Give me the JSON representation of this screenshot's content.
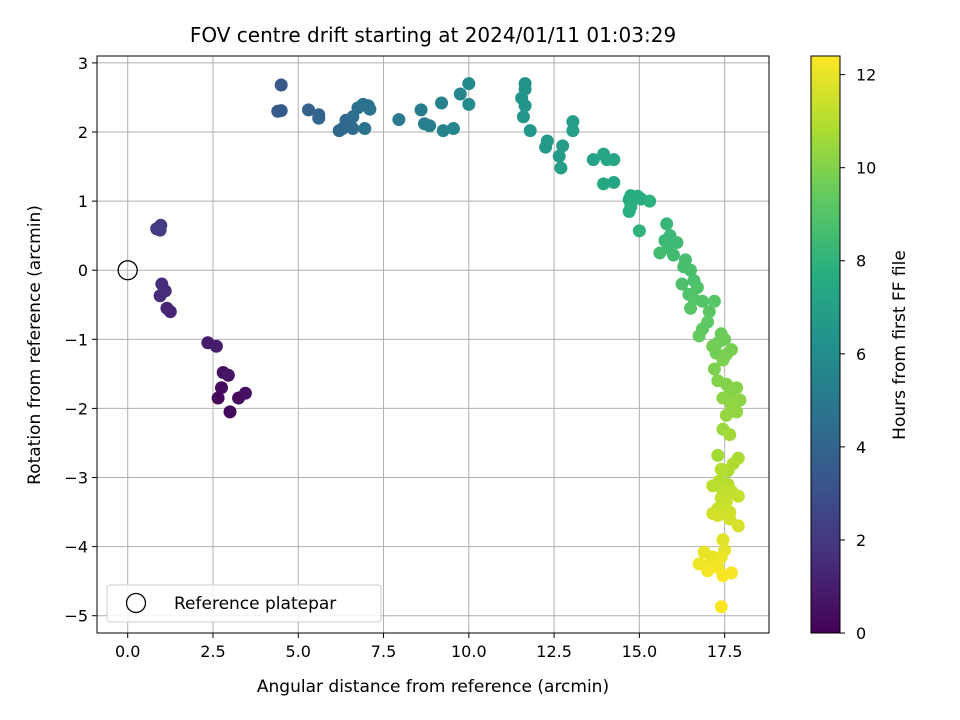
{
  "chart_data": {
    "type": "scatter",
    "title": "FOV centre drift starting at 2024/01/11 01:03:29",
    "xlabel": "Angular distance from reference (arcmin)",
    "ylabel": "Rotation from reference (arcmin)",
    "xlim": [
      -0.9,
      18.8
    ],
    "ylim": [
      -5.25,
      3.1
    ],
    "xticks": [
      0.0,
      2.5,
      5.0,
      7.5,
      10.0,
      12.5,
      15.0,
      17.5
    ],
    "xtick_labels": [
      "0.0",
      "2.5",
      "5.0",
      "7.5",
      "10.0",
      "12.5",
      "15.0",
      "17.5"
    ],
    "yticks": [
      3,
      2,
      1,
      0,
      -1,
      -2,
      -3,
      -4,
      -5
    ],
    "ytick_labels": [
      "3",
      "2",
      "1",
      "0",
      "−1",
      "−2",
      "−3",
      "−4",
      "−5"
    ],
    "grid": true,
    "colormap": "viridis",
    "colorbar": {
      "label": "Hours from first FF file",
      "range": [
        0,
        12.4
      ],
      "ticks": [
        0,
        2,
        4,
        6,
        8,
        10,
        12
      ],
      "tick_labels": [
        "0",
        "2",
        "4",
        "6",
        "8",
        "10",
        "12"
      ]
    },
    "legend": {
      "position": "lower-left",
      "entries": [
        {
          "label": "Reference platepar",
          "marker": "hollow-circle"
        }
      ]
    },
    "reference_point": {
      "x": 0.0,
      "y": 0.0
    },
    "series": [
      {
        "points": [
          {
            "x": 3.0,
            "y": -2.05,
            "t": 0.2
          },
          {
            "x": 2.65,
            "y": -1.85,
            "t": 0.3
          },
          {
            "x": 2.75,
            "y": -1.7,
            "t": 0.4
          },
          {
            "x": 3.25,
            "y": -1.85,
            "t": 0.4
          },
          {
            "x": 3.45,
            "y": -1.78,
            "t": 0.5
          },
          {
            "x": 2.8,
            "y": -1.48,
            "t": 0.6
          },
          {
            "x": 2.95,
            "y": -1.52,
            "t": 0.7
          },
          {
            "x": 2.35,
            "y": -1.05,
            "t": 0.9
          },
          {
            "x": 2.6,
            "y": -1.1,
            "t": 1.0
          },
          {
            "x": 1.25,
            "y": -0.6,
            "t": 1.3
          },
          {
            "x": 1.15,
            "y": -0.55,
            "t": 1.3
          },
          {
            "x": 0.95,
            "y": -0.37,
            "t": 1.5
          },
          {
            "x": 1.1,
            "y": -0.3,
            "t": 1.5
          },
          {
            "x": 1.0,
            "y": -0.2,
            "t": 1.6
          },
          {
            "x": 0.85,
            "y": 0.6,
            "t": 2.1
          },
          {
            "x": 0.95,
            "y": 0.58,
            "t": 2.2
          },
          {
            "x": 0.97,
            "y": 0.65,
            "t": 2.2
          },
          {
            "x": 4.5,
            "y": 2.68,
            "t": 3.4
          },
          {
            "x": 4.4,
            "y": 2.3,
            "t": 3.4
          },
          {
            "x": 4.5,
            "y": 2.31,
            "t": 3.5
          },
          {
            "x": 5.3,
            "y": 2.32,
            "t": 3.8
          },
          {
            "x": 5.6,
            "y": 2.25,
            "t": 3.9
          },
          {
            "x": 5.6,
            "y": 2.2,
            "t": 4.0
          },
          {
            "x": 6.2,
            "y": 2.02,
            "t": 4.1
          },
          {
            "x": 6.3,
            "y": 2.05,
            "t": 4.2
          },
          {
            "x": 6.4,
            "y": 2.17,
            "t": 4.2
          },
          {
            "x": 6.6,
            "y": 2.05,
            "t": 4.3
          },
          {
            "x": 6.6,
            "y": 2.22,
            "t": 4.4
          },
          {
            "x": 6.75,
            "y": 2.35,
            "t": 4.5
          },
          {
            "x": 6.9,
            "y": 2.4,
            "t": 4.6
          },
          {
            "x": 7.05,
            "y": 2.38,
            "t": 4.6
          },
          {
            "x": 7.1,
            "y": 2.33,
            "t": 4.7
          },
          {
            "x": 6.95,
            "y": 2.05,
            "t": 4.7
          },
          {
            "x": 7.95,
            "y": 2.18,
            "t": 5.0
          },
          {
            "x": 8.6,
            "y": 2.32,
            "t": 5.2
          },
          {
            "x": 8.7,
            "y": 2.12,
            "t": 5.3
          },
          {
            "x": 8.85,
            "y": 2.09,
            "t": 5.3
          },
          {
            "x": 9.2,
            "y": 2.42,
            "t": 5.4
          },
          {
            "x": 9.25,
            "y": 2.02,
            "t": 5.5
          },
          {
            "x": 9.55,
            "y": 2.05,
            "t": 5.6
          },
          {
            "x": 9.75,
            "y": 2.55,
            "t": 5.7
          },
          {
            "x": 10.0,
            "y": 2.7,
            "t": 5.8
          },
          {
            "x": 10.0,
            "y": 2.4,
            "t": 5.9
          },
          {
            "x": 11.55,
            "y": 2.49,
            "t": 6.3
          },
          {
            "x": 11.65,
            "y": 2.7,
            "t": 6.3
          },
          {
            "x": 11.65,
            "y": 2.62,
            "t": 6.4
          },
          {
            "x": 11.65,
            "y": 2.38,
            "t": 6.4
          },
          {
            "x": 11.6,
            "y": 2.22,
            "t": 6.5
          },
          {
            "x": 11.8,
            "y": 2.02,
            "t": 6.5
          },
          {
            "x": 12.3,
            "y": 1.87,
            "t": 6.7
          },
          {
            "x": 12.25,
            "y": 1.78,
            "t": 6.7
          },
          {
            "x": 12.65,
            "y": 1.65,
            "t": 6.8
          },
          {
            "x": 12.75,
            "y": 1.8,
            "t": 6.8
          },
          {
            "x": 12.7,
            "y": 1.48,
            "t": 6.9
          },
          {
            "x": 13.05,
            "y": 2.15,
            "t": 6.9
          },
          {
            "x": 13.05,
            "y": 2.02,
            "t": 7.0
          },
          {
            "x": 13.65,
            "y": 1.6,
            "t": 7.1
          },
          {
            "x": 13.95,
            "y": 1.68,
            "t": 7.2
          },
          {
            "x": 14.05,
            "y": 1.6,
            "t": 7.3
          },
          {
            "x": 14.25,
            "y": 1.6,
            "t": 7.3
          },
          {
            "x": 13.95,
            "y": 1.25,
            "t": 7.4
          },
          {
            "x": 14.25,
            "y": 1.27,
            "t": 7.4
          },
          {
            "x": 14.7,
            "y": 1.02,
            "t": 7.6
          },
          {
            "x": 14.75,
            "y": 1.08,
            "t": 7.6
          },
          {
            "x": 14.95,
            "y": 1.07,
            "t": 7.7
          },
          {
            "x": 15.05,
            "y": 1.03,
            "t": 7.7
          },
          {
            "x": 14.75,
            "y": 0.92,
            "t": 7.8
          },
          {
            "x": 14.7,
            "y": 0.85,
            "t": 7.8
          },
          {
            "x": 15.3,
            "y": 1.0,
            "t": 7.9
          },
          {
            "x": 15.0,
            "y": 0.57,
            "t": 8.0
          },
          {
            "x": 15.8,
            "y": 0.67,
            "t": 8.2
          },
          {
            "x": 15.9,
            "y": 0.5,
            "t": 8.3
          },
          {
            "x": 15.75,
            "y": 0.43,
            "t": 8.3
          },
          {
            "x": 16.1,
            "y": 0.4,
            "t": 8.4
          },
          {
            "x": 15.85,
            "y": 0.32,
            "t": 8.4
          },
          {
            "x": 15.6,
            "y": 0.25,
            "t": 8.5
          },
          {
            "x": 16.0,
            "y": 0.22,
            "t": 8.5
          },
          {
            "x": 16.35,
            "y": 0.15,
            "t": 8.6
          },
          {
            "x": 16.3,
            "y": 0.05,
            "t": 8.7
          },
          {
            "x": 16.5,
            "y": 0.0,
            "t": 8.7
          },
          {
            "x": 16.25,
            "y": -0.2,
            "t": 8.8
          },
          {
            "x": 16.6,
            "y": -0.15,
            "t": 8.8
          },
          {
            "x": 16.7,
            "y": -0.25,
            "t": 8.9
          },
          {
            "x": 16.45,
            "y": -0.35,
            "t": 8.9
          },
          {
            "x": 16.6,
            "y": -0.42,
            "t": 9.0
          },
          {
            "x": 16.85,
            "y": -0.45,
            "t": 9.0
          },
          {
            "x": 16.5,
            "y": -0.55,
            "t": 9.1
          },
          {
            "x": 17.2,
            "y": -0.45,
            "t": 9.1
          },
          {
            "x": 17.05,
            "y": -0.6,
            "t": 9.2
          },
          {
            "x": 17.0,
            "y": -0.75,
            "t": 9.3
          },
          {
            "x": 16.85,
            "y": -0.85,
            "t": 9.3
          },
          {
            "x": 16.75,
            "y": -0.95,
            "t": 9.4
          },
          {
            "x": 17.4,
            "y": -0.92,
            "t": 9.5
          },
          {
            "x": 17.5,
            "y": -1.0,
            "t": 9.6
          },
          {
            "x": 17.3,
            "y": -1.05,
            "t": 9.6
          },
          {
            "x": 17.15,
            "y": -1.1,
            "t": 9.7
          },
          {
            "x": 17.25,
            "y": -1.2,
            "t": 9.7
          },
          {
            "x": 17.7,
            "y": -1.15,
            "t": 9.8
          },
          {
            "x": 17.55,
            "y": -1.22,
            "t": 9.8
          },
          {
            "x": 17.45,
            "y": -1.3,
            "t": 9.9
          },
          {
            "x": 17.2,
            "y": -1.43,
            "t": 9.9
          },
          {
            "x": 17.3,
            "y": -1.6,
            "t": 10.0
          },
          {
            "x": 17.55,
            "y": -1.65,
            "t": 10.0
          },
          {
            "x": 17.85,
            "y": -1.7,
            "t": 10.1
          },
          {
            "x": 17.65,
            "y": -1.78,
            "t": 10.1
          },
          {
            "x": 17.45,
            "y": -1.85,
            "t": 10.2
          },
          {
            "x": 17.95,
            "y": -1.88,
            "t": 10.2
          },
          {
            "x": 17.7,
            "y": -1.95,
            "t": 10.3
          },
          {
            "x": 17.85,
            "y": -2.05,
            "t": 10.3
          },
          {
            "x": 17.55,
            "y": -2.1,
            "t": 10.4
          },
          {
            "x": 17.45,
            "y": -2.3,
            "t": 10.5
          },
          {
            "x": 17.65,
            "y": -2.38,
            "t": 10.6
          },
          {
            "x": 17.3,
            "y": -2.68,
            "t": 10.7
          },
          {
            "x": 17.9,
            "y": -2.72,
            "t": 10.8
          },
          {
            "x": 17.75,
            "y": -2.8,
            "t": 10.9
          },
          {
            "x": 17.6,
            "y": -2.9,
            "t": 10.9
          },
          {
            "x": 17.4,
            "y": -2.88,
            "t": 11.0
          },
          {
            "x": 17.35,
            "y": -3.05,
            "t": 11.0
          },
          {
            "x": 17.15,
            "y": -3.12,
            "t": 11.1
          },
          {
            "x": 17.6,
            "y": -3.1,
            "t": 11.1
          },
          {
            "x": 17.45,
            "y": -3.2,
            "t": 11.2
          },
          {
            "x": 17.7,
            "y": -3.2,
            "t": 11.2
          },
          {
            "x": 17.9,
            "y": -3.27,
            "t": 11.3
          },
          {
            "x": 17.4,
            "y": -3.3,
            "t": 11.3
          },
          {
            "x": 17.55,
            "y": -3.35,
            "t": 11.4
          },
          {
            "x": 17.3,
            "y": -3.45,
            "t": 11.4
          },
          {
            "x": 17.65,
            "y": -3.5,
            "t": 11.5
          },
          {
            "x": 17.15,
            "y": -3.52,
            "t": 11.5
          },
          {
            "x": 17.3,
            "y": -3.55,
            "t": 11.6
          },
          {
            "x": 17.65,
            "y": -3.6,
            "t": 11.6
          },
          {
            "x": 17.9,
            "y": -3.7,
            "t": 11.7
          },
          {
            "x": 17.45,
            "y": -3.9,
            "t": 11.8
          },
          {
            "x": 17.5,
            "y": -4.05,
            "t": 11.9
          },
          {
            "x": 16.9,
            "y": -4.08,
            "t": 12.0
          },
          {
            "x": 17.15,
            "y": -4.15,
            "t": 12.0
          },
          {
            "x": 17.4,
            "y": -4.15,
            "t": 12.1
          },
          {
            "x": 16.75,
            "y": -4.25,
            "t": 12.1
          },
          {
            "x": 17.05,
            "y": -4.25,
            "t": 12.1
          },
          {
            "x": 17.3,
            "y": -4.3,
            "t": 12.2
          },
          {
            "x": 17.0,
            "y": -4.35,
            "t": 12.2
          },
          {
            "x": 17.7,
            "y": -4.38,
            "t": 12.3
          },
          {
            "x": 17.45,
            "y": -4.42,
            "t": 12.3
          },
          {
            "x": 17.4,
            "y": -4.87,
            "t": 12.4
          }
        ]
      }
    ]
  }
}
